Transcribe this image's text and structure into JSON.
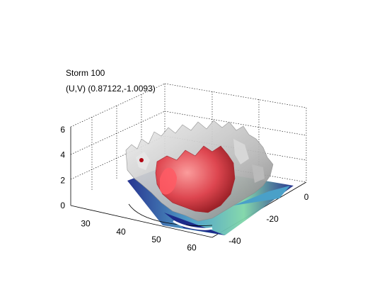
{
  "chart_data": {
    "type": "surface3d",
    "title_line1": "Storm 100",
    "title_line2": "(U,V) (0.87122,-1.0093)",
    "z_ticks": [
      "0",
      "2",
      "4",
      "6"
    ],
    "x_ticks": [
      "30",
      "40",
      "50",
      "60"
    ],
    "y_ticks": [
      "0",
      "-20",
      "-40"
    ],
    "zlim": [
      0,
      6
    ],
    "xlim": [
      25,
      65
    ],
    "ylim": [
      -45,
      5
    ],
    "grid": true,
    "colors": {
      "outer_isosurface": "#c8c8c8",
      "inner_isosurface": "#e0404a",
      "base_slice_low": "#1c2a8a",
      "base_slice_mid": "#4aa0c8",
      "base_slice_high": "#7fd6a8"
    }
  }
}
